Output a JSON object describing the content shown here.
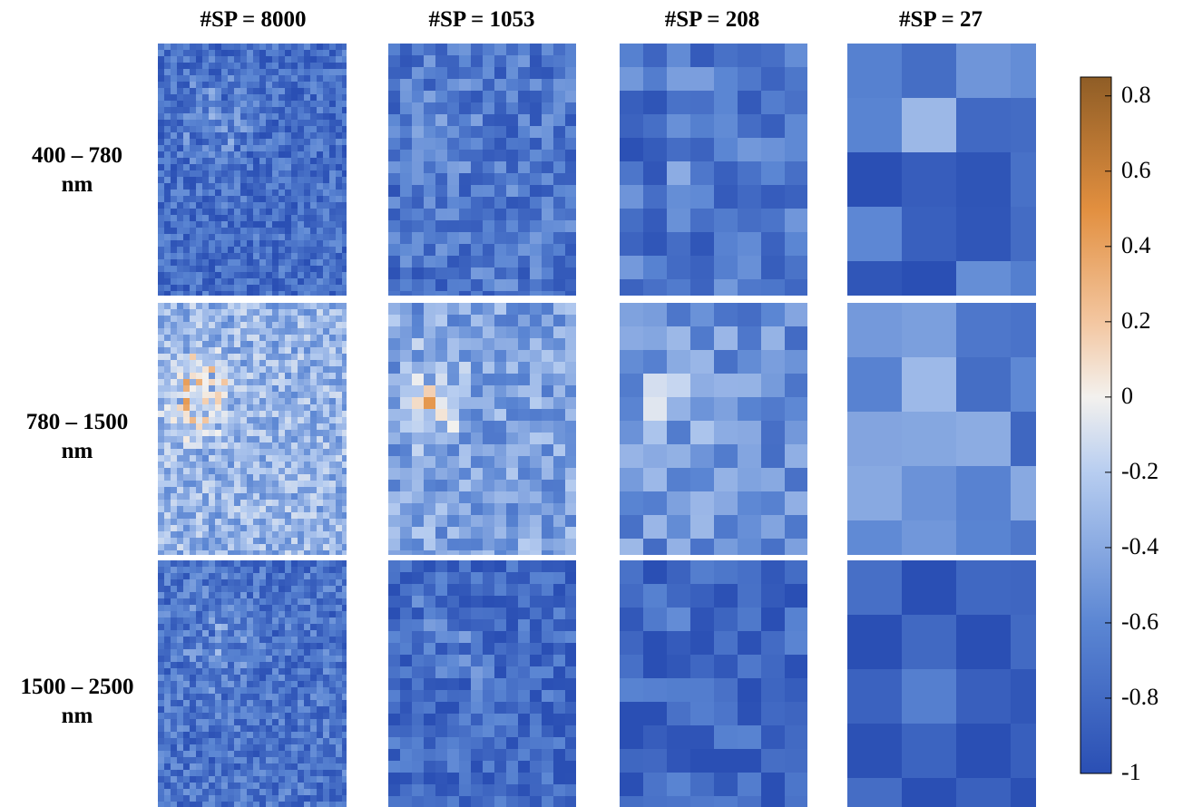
{
  "chart_data": {
    "type": "heatmap",
    "columns": [
      "#SP = 8000",
      "#SP = 1053",
      "#SP = 208",
      "#SP = 27"
    ],
    "rows": [
      {
        "line1": "400 – 780",
        "line2": "nm"
      },
      {
        "line1": "780 – 1500",
        "line2": "nm"
      },
      {
        "line1": "1500 – 2500",
        "line2": "nm"
      }
    ],
    "colorbar": {
      "min": -1,
      "max": 0.85,
      "ticks": [
        "0.8",
        "0.6",
        "0.4",
        "0.2",
        "0",
        "-0.2",
        "-0.4",
        "-0.6",
        "-0.8",
        "-1"
      ],
      "tick_values": [
        0.8,
        0.6,
        0.4,
        0.2,
        0,
        -0.2,
        -0.4,
        -0.6,
        -0.8,
        -1
      ],
      "colormap": [
        {
          "v": -1.0,
          "color": "#2a4fb4"
        },
        {
          "v": -0.6,
          "color": "#5b86d3"
        },
        {
          "v": -0.2,
          "color": "#b7cdf0"
        },
        {
          "v": 0.0,
          "color": "#f3f1ee"
        },
        {
          "v": 0.2,
          "color": "#f3c6a0"
        },
        {
          "v": 0.5,
          "color": "#e28f3f"
        },
        {
          "v": 0.85,
          "color": "#8f5d26"
        }
      ]
    },
    "panel_mean_values": [
      [
        -0.78,
        -0.72,
        -0.74,
        -0.76
      ],
      [
        -0.35,
        -0.45,
        -0.55,
        -0.62
      ],
      [
        -0.74,
        -0.82,
        -0.86,
        -0.9
      ]
    ]
  }
}
